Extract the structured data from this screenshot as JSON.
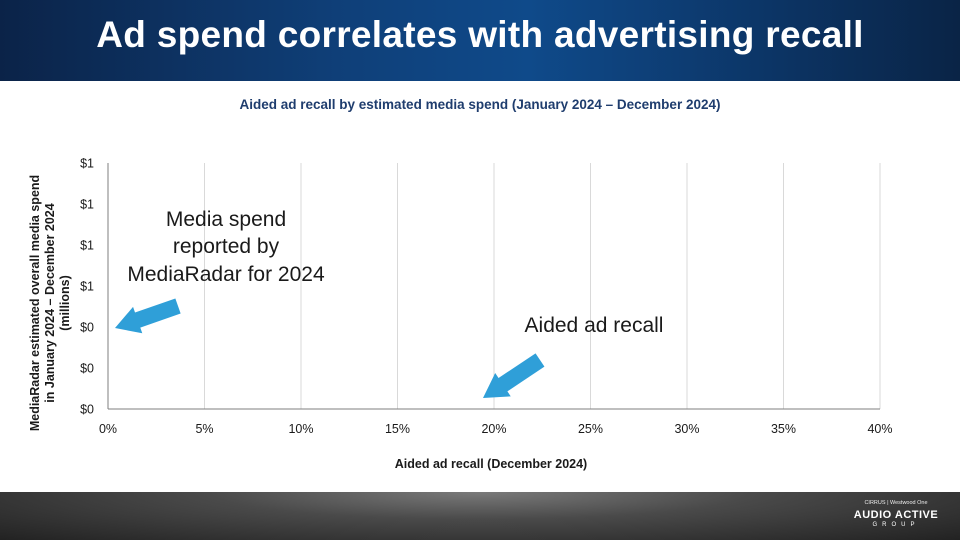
{
  "header": {
    "title": "Ad spend correlates with advertising recall"
  },
  "chart_data": {
    "type": "scatter",
    "title": "Aided ad recall by estimated media spend (January 2024 – December 2024)",
    "xlabel": "Aided ad recall (December 2024)",
    "ylabel": "MediaRadar estimated overall media spend in January 2024 – December 2024 (millions)",
    "xlim": [
      0,
      0.4
    ],
    "x_ticks": [
      "0%",
      "5%",
      "10%",
      "15%",
      "20%",
      "25%",
      "30%",
      "35%",
      "40%"
    ],
    "y_ticks": [
      "$0",
      "$0",
      "$0",
      "$1",
      "$1",
      "$1",
      "$1"
    ],
    "grid": "vertical",
    "series": [],
    "annotations": [
      {
        "text": "Media spend reported by MediaRadar for 2024",
        "points_to": "y-axis"
      },
      {
        "text": "Aided ad recall",
        "points_to": "x-axis"
      }
    ]
  },
  "colors": {
    "header": "#0f3f78",
    "title": "#1f3d6e",
    "arrow": "#2f9fd8",
    "grid": "#d9d9d9"
  },
  "logo": {
    "top": "CIRRUS | Westwood One",
    "main": "AUDIO ACTIVE",
    "sub": "GROUP"
  }
}
